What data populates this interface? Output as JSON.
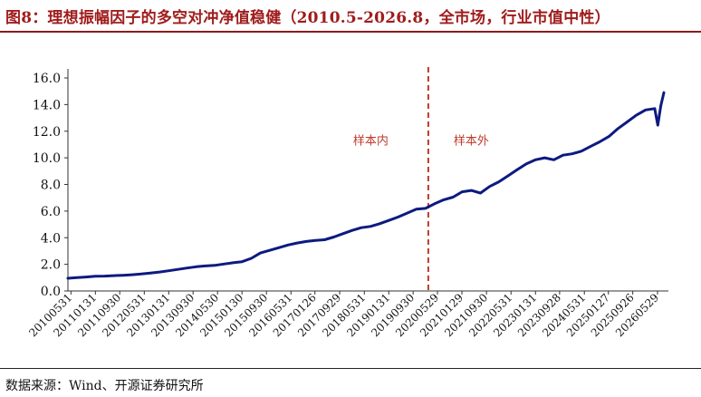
{
  "title": "图8：理想振幅因子的多空对冲净值稳健（2010.5-2026.8，全市场，行业市值中性）",
  "source": "数据来源：Wind、开源证券研究所",
  "colors": {
    "line": "#0d1a80",
    "divider": "#c0392b",
    "annotation": "#c0392b",
    "title": "#a01c1c"
  },
  "chart_data": {
    "type": "line",
    "title": "",
    "xlabel": "",
    "ylabel": "",
    "ylim": [
      0,
      16
    ],
    "yticks": [
      "0.0",
      "2.0",
      "4.0",
      "6.0",
      "8.0",
      "10.0",
      "12.0",
      "14.0",
      "16.0"
    ],
    "grid": false,
    "legend": "none",
    "xticks": [
      "20100531",
      "20110131",
      "20110930",
      "20120531",
      "20130131",
      "20130930",
      "20140530",
      "20150130",
      "20150930",
      "20160531",
      "20170126",
      "20170929",
      "20180531",
      "20190131",
      "20190930",
      "20200529",
      "20210129",
      "20210930",
      "20220531",
      "20230131",
      "20230928",
      "20240531",
      "20250127",
      "20250926",
      "20260529"
    ],
    "divider": {
      "x": "20200229",
      "left_label": "样本内",
      "right_label": "样本外"
    },
    "series": [
      {
        "x": [
          "2010-05",
          "2010-08",
          "2010-11",
          "2011-02",
          "2011-05",
          "2011-08",
          "2011-11",
          "2012-02",
          "2012-05",
          "2012-08",
          "2012-11",
          "2013-02",
          "2013-05",
          "2013-08",
          "2013-11",
          "2014-02",
          "2014-05",
          "2014-08",
          "2014-11",
          "2015-02",
          "2015-05",
          "2015-08",
          "2015-11",
          "2016-02",
          "2016-05",
          "2016-08",
          "2016-11",
          "2017-02",
          "2017-05",
          "2017-08",
          "2017-11",
          "2018-02",
          "2018-05",
          "2018-08",
          "2018-11",
          "2019-02",
          "2019-05",
          "2019-08",
          "2019-11",
          "2020-02",
          "2020-05",
          "2020-08",
          "2020-11",
          "2021-02",
          "2021-05",
          "2021-08",
          "2021-11",
          "2022-02",
          "2022-05",
          "2022-08",
          "2022-11",
          "2023-02",
          "2023-05",
          "2023-08",
          "2023-11",
          "2024-02",
          "2024-05",
          "2024-08",
          "2024-11",
          "2025-02",
          "2025-05",
          "2025-08",
          "2025-11",
          "2026-02",
          "2026-05",
          "2026-06",
          "2026-07",
          "2026-08"
        ],
        "values": [
          0.95,
          1.0,
          1.05,
          1.1,
          1.12,
          1.15,
          1.18,
          1.22,
          1.27,
          1.35,
          1.42,
          1.52,
          1.62,
          1.72,
          1.82,
          1.88,
          1.92,
          2.02,
          2.12,
          2.2,
          2.45,
          2.85,
          3.05,
          3.25,
          3.45,
          3.6,
          3.72,
          3.8,
          3.85,
          4.05,
          4.3,
          4.55,
          4.75,
          4.85,
          5.05,
          5.3,
          5.55,
          5.85,
          6.15,
          6.2,
          6.55,
          6.85,
          7.05,
          7.45,
          7.55,
          7.35,
          7.85,
          8.2,
          8.65,
          9.1,
          9.55,
          9.85,
          10.0,
          9.85,
          10.2,
          10.3,
          10.5,
          10.85,
          11.2,
          11.6,
          12.2,
          12.7,
          13.2,
          13.6,
          13.7,
          12.45,
          13.9,
          14.9
        ]
      }
    ]
  }
}
